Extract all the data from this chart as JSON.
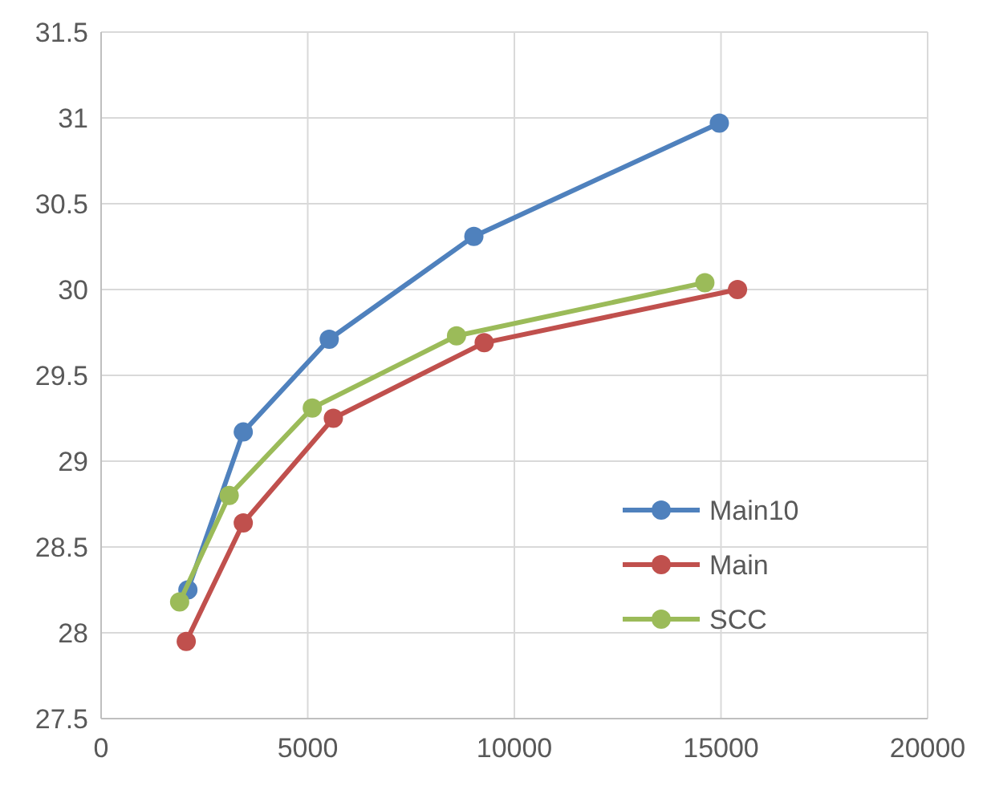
{
  "chart_data": {
    "type": "line",
    "xlim": [
      0,
      20000
    ],
    "xticks": [
      0,
      5000,
      10000,
      15000,
      20000
    ],
    "ylim": [
      27.5,
      31.5
    ],
    "yticks": [
      27.5,
      28,
      28.5,
      29,
      29.5,
      30,
      30.5,
      31,
      31.5
    ],
    "grid": true,
    "legend": "bottom right",
    "marker": "circle",
    "line_style": "solid",
    "series": [
      {
        "name": "Main10",
        "color": "#4f81bd",
        "x": [
          2100,
          3440,
          5520,
          9020,
          14960
        ],
        "values": [
          28.25,
          29.17,
          29.71,
          30.31,
          30.97
        ]
      },
      {
        "name": "Main",
        "color": "#c0504d",
        "x": [
          2060,
          3440,
          5620,
          9270,
          15400
        ],
        "values": [
          27.95,
          28.64,
          29.25,
          29.69,
          30.0
        ]
      },
      {
        "name": "SCC",
        "color": "#9bbb59",
        "x": [
          1900,
          3100,
          5110,
          8600,
          14610
        ],
        "values": [
          28.18,
          28.8,
          29.31,
          29.73,
          30.04
        ]
      }
    ]
  }
}
